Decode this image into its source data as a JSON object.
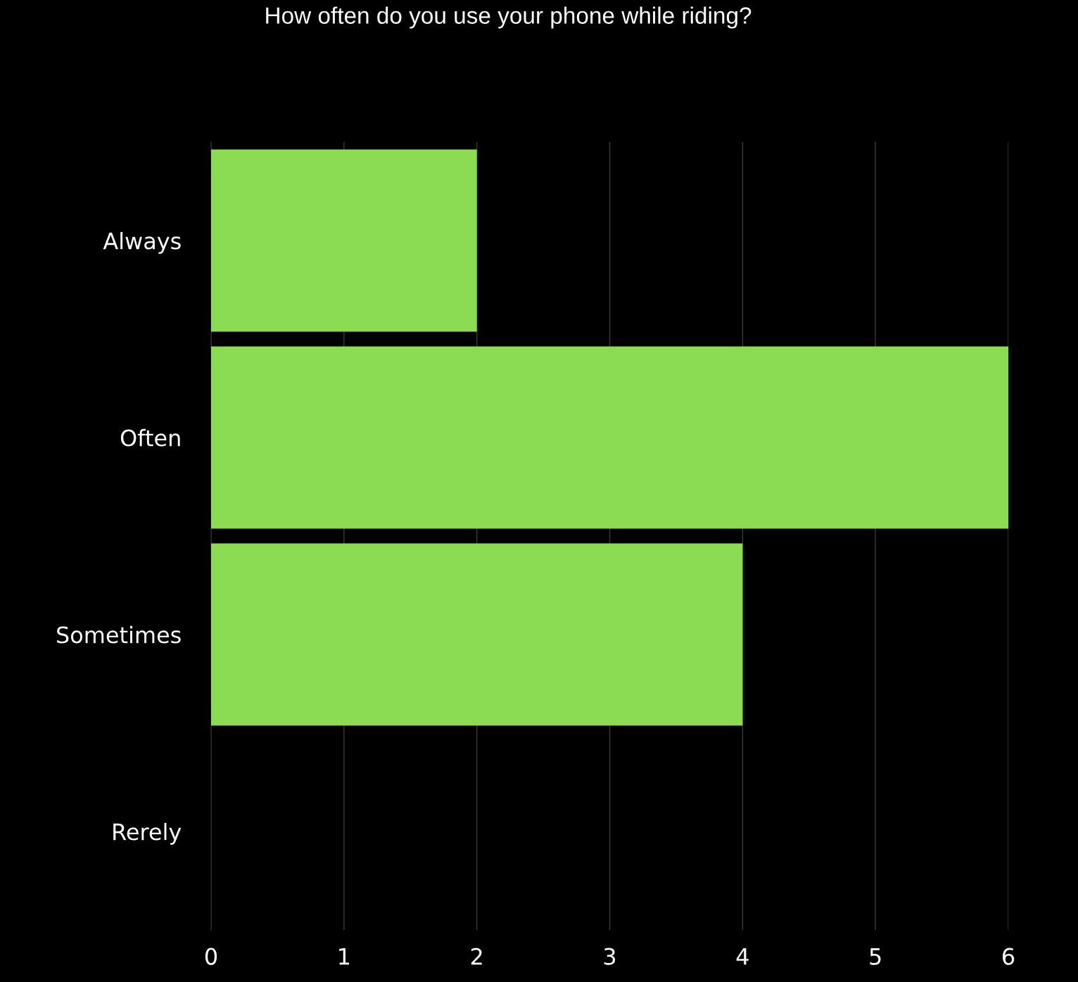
{
  "chart_data": {
    "type": "bar",
    "orientation": "horizontal",
    "title": "How often do you use your phone while riding?",
    "categories": [
      "Always",
      "Often",
      "Sometimes",
      "Rerely"
    ],
    "values": [
      2,
      6,
      4,
      0
    ],
    "color": "#8bdb53",
    "xlim": [
      0,
      6
    ],
    "xticks": [
      0,
      1,
      2,
      3,
      4,
      5,
      6
    ],
    "grid": "x",
    "legend": false
  }
}
